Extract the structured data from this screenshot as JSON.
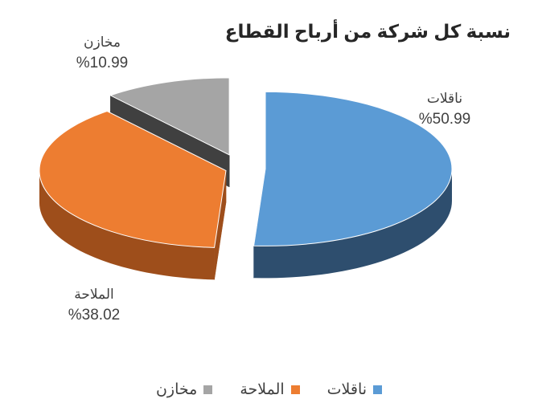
{
  "chart_data": {
    "type": "pie",
    "style": "3d-exploded",
    "title": "نسبة كل شركة من أرباح القطاع",
    "slices": [
      {
        "name": "ناقلات",
        "value": 50.99,
        "label": "%50.99",
        "color": "#5B9BD5",
        "side": "#2E4E6E"
      },
      {
        "name": "الملاحة",
        "value": 38.02,
        "label": "%38.02",
        "color": "#ED7D31",
        "side": "#9E4E1B"
      },
      {
        "name": "مخازن",
        "value": 10.99,
        "label": "%10.99",
        "color": "#A5A5A5",
        "side": "#404040"
      }
    ],
    "legend_position": "bottom"
  }
}
